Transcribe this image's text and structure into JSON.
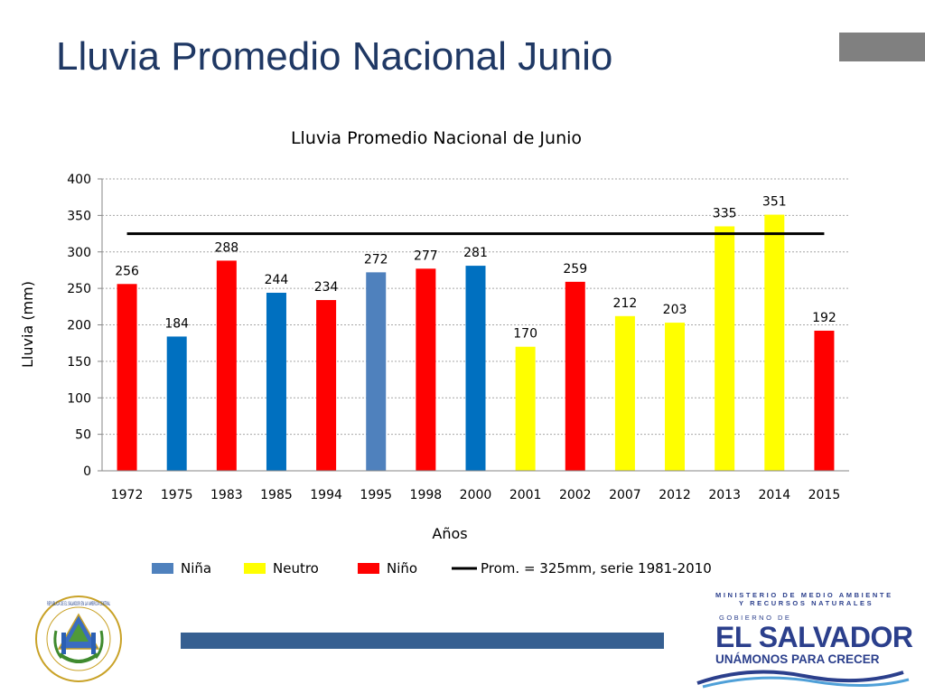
{
  "slide": {
    "title": "Lluvia Promedio Nacional Junio"
  },
  "logo": {
    "ministry_line1": "MINISTERIO DE MEDIO AMBIENTE",
    "ministry_line2": "Y RECURSOS NATURALES",
    "gov_label": "GOBIERNO DE",
    "country": "EL SALVADOR",
    "slogan": "UNÁMONOS PARA CRECER",
    "seal_text": "REPUBLICA DE EL SALVADOR EN LA AMERICA CENTRAL"
  },
  "colors": {
    "nina": "#0070c0",
    "nina_light": "#4f81bd",
    "neutro": "#ffff00",
    "nino": "#ff0000",
    "average": "#000000",
    "title": "#1f3864"
  },
  "chart_data": {
    "type": "bar",
    "title": "Lluvia Promedio Nacional de Junio",
    "xlabel": "Años",
    "ylabel": "Lluvia (mm)",
    "ylim": [
      0,
      400
    ],
    "yticks": [
      0,
      50,
      100,
      150,
      200,
      250,
      300,
      350,
      400
    ],
    "grid": true,
    "legend_position": "bottom",
    "categories": [
      "1972",
      "1975",
      "1983",
      "1985",
      "1994",
      "1995",
      "1998",
      "2000",
      "2001",
      "2002",
      "2007",
      "2012",
      "2013",
      "2014",
      "2015"
    ],
    "values": [
      256,
      184,
      288,
      244,
      234,
      272,
      277,
      281,
      170,
      259,
      212,
      203,
      335,
      351,
      192
    ],
    "phase": [
      "Niño",
      "Niña",
      "Niño",
      "Niña",
      "Niño",
      "Niña",
      "Niño",
      "Niña",
      "Neutro",
      "Niño",
      "Neutro",
      "Neutro",
      "Neutro",
      "Neutro",
      "Niño"
    ],
    "bar_colors": [
      "#ff0000",
      "#0070c0",
      "#ff0000",
      "#0070c0",
      "#ff0000",
      "#4f81bd",
      "#ff0000",
      "#0070c0",
      "#ffff00",
      "#ff0000",
      "#ffff00",
      "#ffff00",
      "#ffff00",
      "#ffff00",
      "#ff0000"
    ],
    "reference_line": {
      "name": "Prom. = 325mm,  serie 1981-2010",
      "value": 325
    },
    "legend": [
      {
        "label": "Niña",
        "kind": "box",
        "color": "#4f81bd"
      },
      {
        "label": "Neutro",
        "kind": "box",
        "color": "#ffff00"
      },
      {
        "label": "Niño",
        "kind": "box",
        "color": "#ff0000"
      },
      {
        "label": "Prom. = 325mm,  serie 1981-2010",
        "kind": "line",
        "color": "#000000"
      }
    ]
  }
}
